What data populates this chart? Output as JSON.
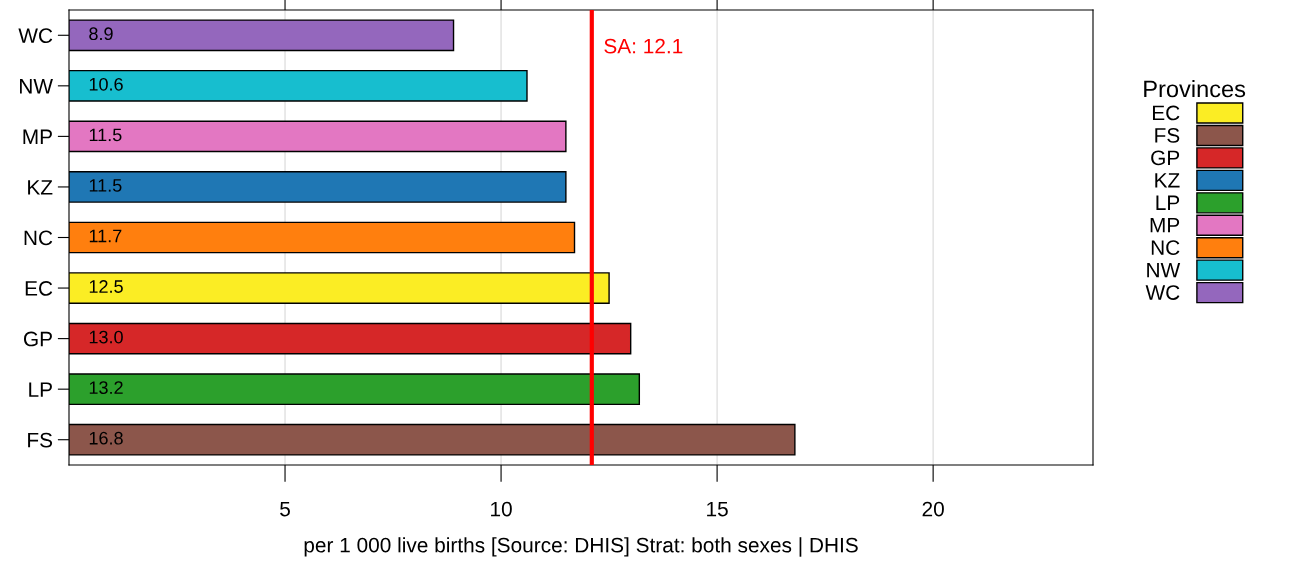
{
  "chart_data": {
    "type": "bar",
    "orientation": "horizontal",
    "categories": [
      "WC",
      "NW",
      "MP",
      "KZ",
      "NC",
      "EC",
      "GP",
      "LP",
      "FS"
    ],
    "series": [
      {
        "name": "EC",
        "color": "#fbed24",
        "values": [
          null,
          null,
          null,
          null,
          null,
          12.5,
          null,
          null,
          null
        ],
        "value_labels": [
          null,
          null,
          null,
          null,
          null,
          "12.5",
          null,
          null,
          null
        ]
      },
      {
        "name": "FS",
        "color": "#8c564b",
        "values": [
          null,
          null,
          null,
          null,
          null,
          null,
          null,
          null,
          16.8
        ],
        "value_labels": [
          null,
          null,
          null,
          null,
          null,
          null,
          null,
          null,
          "16.8"
        ]
      },
      {
        "name": "GP",
        "color": "#d62728",
        "values": [
          null,
          null,
          null,
          null,
          null,
          null,
          13.0,
          null,
          null
        ],
        "value_labels": [
          null,
          null,
          null,
          null,
          null,
          null,
          "13.0",
          null,
          null
        ]
      },
      {
        "name": "KZ",
        "color": "#1f77b4",
        "values": [
          null,
          null,
          null,
          11.5,
          null,
          null,
          null,
          null,
          null
        ],
        "value_labels": [
          null,
          null,
          null,
          "11.5",
          null,
          null,
          null,
          null,
          null
        ]
      },
      {
        "name": "LP",
        "color": "#2ca02c",
        "values": [
          null,
          null,
          null,
          null,
          null,
          null,
          null,
          13.2,
          null
        ],
        "value_labels": [
          null,
          null,
          null,
          null,
          null,
          null,
          null,
          "13.2",
          null
        ]
      },
      {
        "name": "MP",
        "color": "#e377c2",
        "values": [
          null,
          null,
          11.5,
          null,
          null,
          null,
          null,
          null,
          null
        ],
        "value_labels": [
          null,
          null,
          "11.5",
          null,
          null,
          null,
          null,
          null,
          null
        ]
      },
      {
        "name": "NC",
        "color": "#ff7f0e",
        "values": [
          null,
          null,
          null,
          null,
          11.7,
          null,
          null,
          null,
          null
        ],
        "value_labels": [
          null,
          null,
          null,
          null,
          "11.7",
          null,
          null,
          null,
          null
        ]
      },
      {
        "name": "NW",
        "color": "#17becf",
        "values": [
          null,
          10.6,
          null,
          null,
          null,
          null,
          null,
          null,
          null
        ],
        "value_labels": [
          null,
          "10.6",
          null,
          null,
          null,
          null,
          null,
          null,
          null
        ]
      },
      {
        "name": "WC",
        "color": "#9467bd",
        "values": [
          8.9,
          null,
          null,
          null,
          null,
          null,
          null,
          null,
          null
        ],
        "value_labels": [
          "8.9",
          null,
          null,
          null,
          null,
          null,
          null,
          null,
          null
        ]
      }
    ],
    "xlim": [
      0,
      23.7
    ],
    "xticks": [
      5,
      10,
      15,
      20
    ],
    "xlabel": "per 1 000 live births [Source: DHIS] Strat: both sexes | DHIS",
    "legend_title": "Provinces",
    "legend": "right",
    "ref_lines": [
      {
        "axis": "x",
        "value": 12.1,
        "label": "SA: 12.1",
        "color": "#ff0000"
      }
    ],
    "grid": "x"
  }
}
